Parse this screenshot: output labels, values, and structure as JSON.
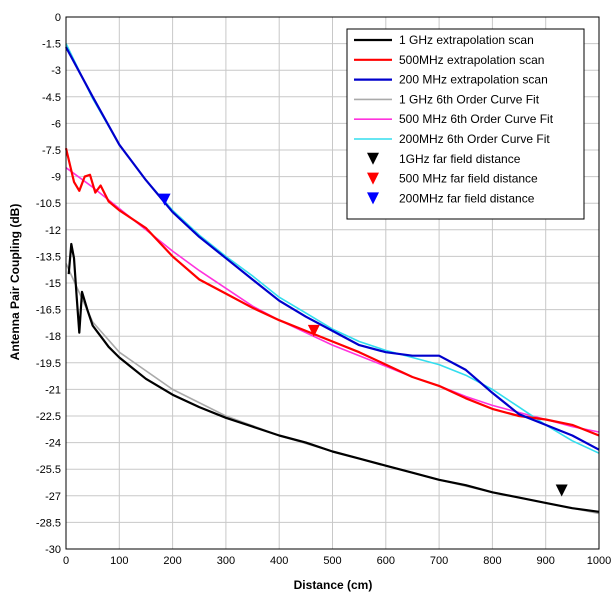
{
  "chart_data": {
    "type": "line",
    "title": "",
    "xlabel": "Distance (cm)",
    "ylabel": "Antenna Pair Coupling (dB)",
    "xlim": [
      0,
      1000
    ],
    "ylim": [
      -30,
      0
    ],
    "xticks": [
      0,
      100,
      200,
      300,
      400,
      500,
      600,
      700,
      800,
      900,
      1000
    ],
    "yticks": [
      0,
      -1.5,
      -3,
      -4.5,
      -6,
      -7.5,
      -9,
      -10.5,
      -12,
      -13.5,
      -15,
      -16.5,
      -18,
      -19.5,
      -21,
      -22.5,
      -24,
      -25.5,
      -27,
      -28.5,
      -30
    ],
    "grid": true,
    "legend_position": "top-right",
    "series": [
      {
        "name": "1 GHz extrapolation scan",
        "color": "#000000",
        "kind": "line",
        "x": [
          5,
          10,
          15,
          20,
          25,
          30,
          40,
          50,
          60,
          70,
          80,
          100,
          150,
          200,
          250,
          300,
          350,
          400,
          450,
          500,
          550,
          600,
          650,
          700,
          750,
          800,
          850,
          900,
          950,
          1000
        ],
        "y": [
          -14.5,
          -12.8,
          -13.6,
          -15.8,
          -17.8,
          -15.5,
          -16.5,
          -17.4,
          -17.8,
          -18.2,
          -18.6,
          -19.2,
          -20.4,
          -21.3,
          -22.0,
          -22.6,
          -23.1,
          -23.6,
          -24.0,
          -24.5,
          -24.9,
          -25.3,
          -25.7,
          -26.1,
          -26.4,
          -26.8,
          -27.1,
          -27.4,
          -27.7,
          -27.9
        ]
      },
      {
        "name": "500MHz extrapolation scan",
        "color": "#ff0000",
        "kind": "line",
        "x": [
          0,
          15,
          25,
          35,
          45,
          55,
          65,
          80,
          100,
          150,
          200,
          250,
          300,
          350,
          400,
          450,
          500,
          550,
          600,
          650,
          700,
          750,
          800,
          850,
          900,
          950,
          1000
        ],
        "y": [
          -7.4,
          -9.3,
          -9.8,
          -9.0,
          -8.9,
          -9.9,
          -9.5,
          -10.4,
          -10.9,
          -11.9,
          -13.5,
          -14.8,
          -15.6,
          -16.4,
          -17.1,
          -17.7,
          -18.3,
          -18.9,
          -19.6,
          -20.3,
          -20.8,
          -21.5,
          -22.1,
          -22.5,
          -22.7,
          -23.0,
          -23.6
        ]
      },
      {
        "name": "200 MHz extrapolation scan",
        "color": "#0000cc",
        "kind": "line",
        "x": [
          0,
          50,
          100,
          150,
          200,
          250,
          300,
          350,
          400,
          450,
          500,
          550,
          600,
          650,
          700,
          750,
          800,
          850,
          900,
          950,
          1000
        ],
        "y": [
          -1.7,
          -4.5,
          -7.2,
          -9.2,
          -11.0,
          -12.4,
          -13.6,
          -14.8,
          -16.0,
          -16.9,
          -17.7,
          -18.5,
          -18.9,
          -19.1,
          -19.1,
          -19.9,
          -21.2,
          -22.4,
          -23.0,
          -23.6,
          -24.4
        ]
      },
      {
        "name": "1 GHz 6th Order Curve Fit",
        "color": "#aaaaaa",
        "kind": "line",
        "x": [
          0,
          50,
          100,
          200,
          300,
          400,
          500,
          600,
          700,
          800,
          900,
          1000
        ],
        "y": [
          -13.9,
          -17.2,
          -18.9,
          -21.0,
          -22.5,
          -23.6,
          -24.5,
          -25.3,
          -26.1,
          -26.8,
          -27.4,
          -28.0
        ]
      },
      {
        "name": "500 MHz 6th Order Curve Fit",
        "color": "#ff33dd",
        "kind": "line",
        "x": [
          0,
          50,
          100,
          150,
          200,
          250,
          300,
          350,
          400,
          450,
          500,
          550,
          600,
          650,
          700,
          750,
          800,
          850,
          900,
          950,
          1000
        ],
        "y": [
          -8.5,
          -9.6,
          -10.8,
          -12.0,
          -13.2,
          -14.3,
          -15.3,
          -16.3,
          -17.1,
          -17.8,
          -18.5,
          -19.1,
          -19.7,
          -20.3,
          -20.8,
          -21.4,
          -21.9,
          -22.3,
          -22.7,
          -23.1,
          -23.4
        ]
      },
      {
        "name": "200MHz 6th Order Curve Fit",
        "color": "#33ddee",
        "kind": "line",
        "x": [
          0,
          50,
          100,
          150,
          200,
          250,
          300,
          350,
          400,
          450,
          500,
          550,
          600,
          650,
          700,
          750,
          800,
          850,
          900,
          950,
          1000
        ],
        "y": [
          -1.5,
          -4.6,
          -7.2,
          -9.2,
          -10.9,
          -12.3,
          -13.5,
          -14.6,
          -15.8,
          -16.7,
          -17.6,
          -18.3,
          -18.8,
          -19.2,
          -19.6,
          -20.2,
          -21.0,
          -22.0,
          -23.0,
          -23.9,
          -24.6
        ]
      },
      {
        "name": "1GHz far field distance",
        "color": "#000000",
        "kind": "marker",
        "x": [
          930
        ],
        "y": [
          -26.7
        ]
      },
      {
        "name": "500 MHz far field distance",
        "color": "#ff0000",
        "kind": "marker",
        "x": [
          465
        ],
        "y": [
          -17.7
        ]
      },
      {
        "name": "200MHz far field distance",
        "color": "#0000ff",
        "kind": "marker",
        "x": [
          185
        ],
        "y": [
          -10.3
        ]
      }
    ]
  }
}
